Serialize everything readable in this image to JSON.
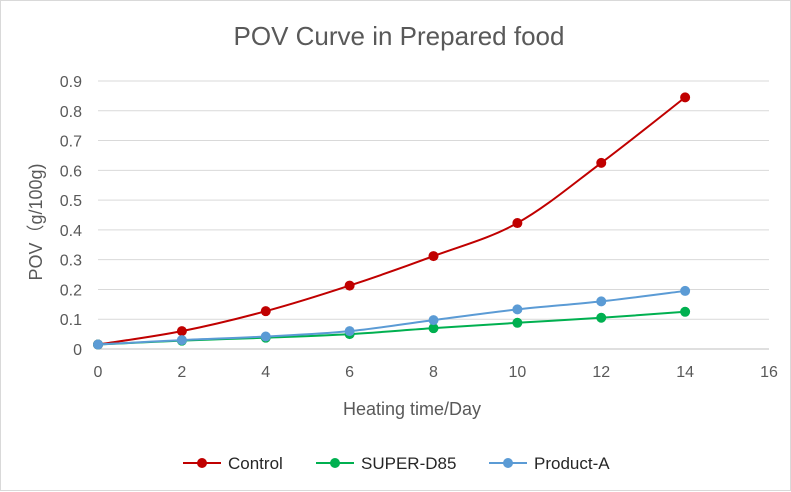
{
  "chart_data": {
    "type": "line",
    "title": "POV Curve in Prepared food",
    "xlabel": "Heating time/Day",
    "ylabel": "POV（g/100g)",
    "xlim": [
      0,
      16
    ],
    "ylim": [
      0,
      0.9
    ],
    "x_ticks": [
      0,
      2,
      4,
      6,
      8,
      10,
      12,
      14,
      16
    ],
    "y_ticks": [
      0,
      0.1,
      0.2,
      0.3,
      0.4,
      0.5,
      0.6,
      0.7,
      0.8,
      0.9
    ],
    "x_tick_labels": [
      "0",
      "2",
      "4",
      "6",
      "8",
      "10",
      "12",
      "14",
      "16"
    ],
    "y_tick_labels": [
      "0",
      "0.1",
      "0.2",
      "0.3",
      "0.4",
      "0.5",
      "0.6",
      "0.7",
      "0.8",
      "0.9"
    ],
    "grid": "horizontal",
    "legend_position": "bottom",
    "x": [
      0,
      2,
      4,
      6,
      8,
      10,
      12,
      14
    ],
    "series": [
      {
        "name": "Control",
        "color": "#c00000",
        "values": [
          0.015,
          0.06,
          0.127,
          0.213,
          0.312,
          0.423,
          0.625,
          0.845
        ]
      },
      {
        "name": "SUPER-D85",
        "color": "#00b050",
        "values": [
          0.015,
          0.028,
          0.038,
          0.05,
          0.07,
          0.088,
          0.105,
          0.125
        ]
      },
      {
        "name": "Product-A",
        "color": "#5b9bd5",
        "values": [
          0.015,
          0.03,
          0.042,
          0.06,
          0.097,
          0.133,
          0.16,
          0.195
        ]
      }
    ]
  }
}
